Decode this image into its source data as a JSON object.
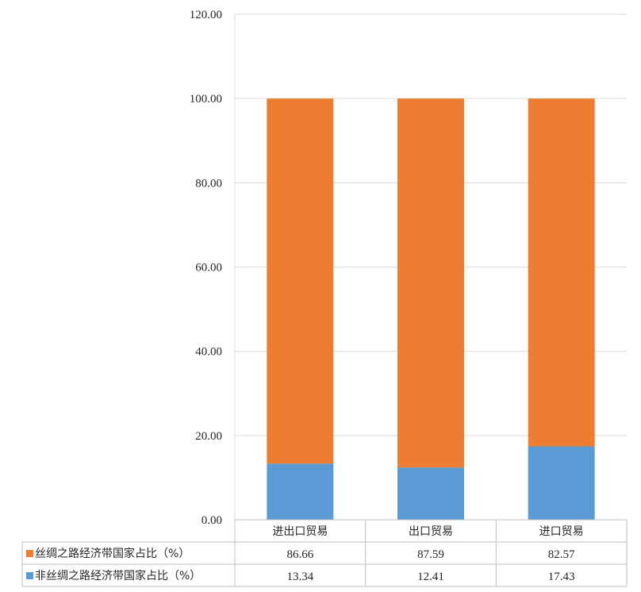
{
  "chart_data": {
    "type": "bar",
    "stacked": true,
    "title": "",
    "xlabel": "",
    "ylabel": "",
    "ylim": [
      0,
      120
    ],
    "yticks": [
      0,
      20,
      40,
      60,
      80,
      100,
      120
    ],
    "tick_format_decimals": 2,
    "grid": true,
    "legend": "data-table-left",
    "categories": [
      "进出口贸易",
      "出口贸易",
      "进口贸易"
    ],
    "series": [
      {
        "name": "非丝绸之路经济带国家占比（%）",
        "values": [
          13.34,
          12.41,
          17.43
        ],
        "color": "#5B9BD5",
        "labels": [
          "13.34",
          "12.41",
          "17.43"
        ]
      },
      {
        "name": "丝绸之路经济带国家占比（%）",
        "values": [
          86.66,
          87.59,
          82.57
        ],
        "color": "#ED7D31",
        "labels": [
          "86.66",
          "87.59",
          "82.57"
        ]
      }
    ],
    "table_row_order": [
      1,
      0
    ]
  }
}
